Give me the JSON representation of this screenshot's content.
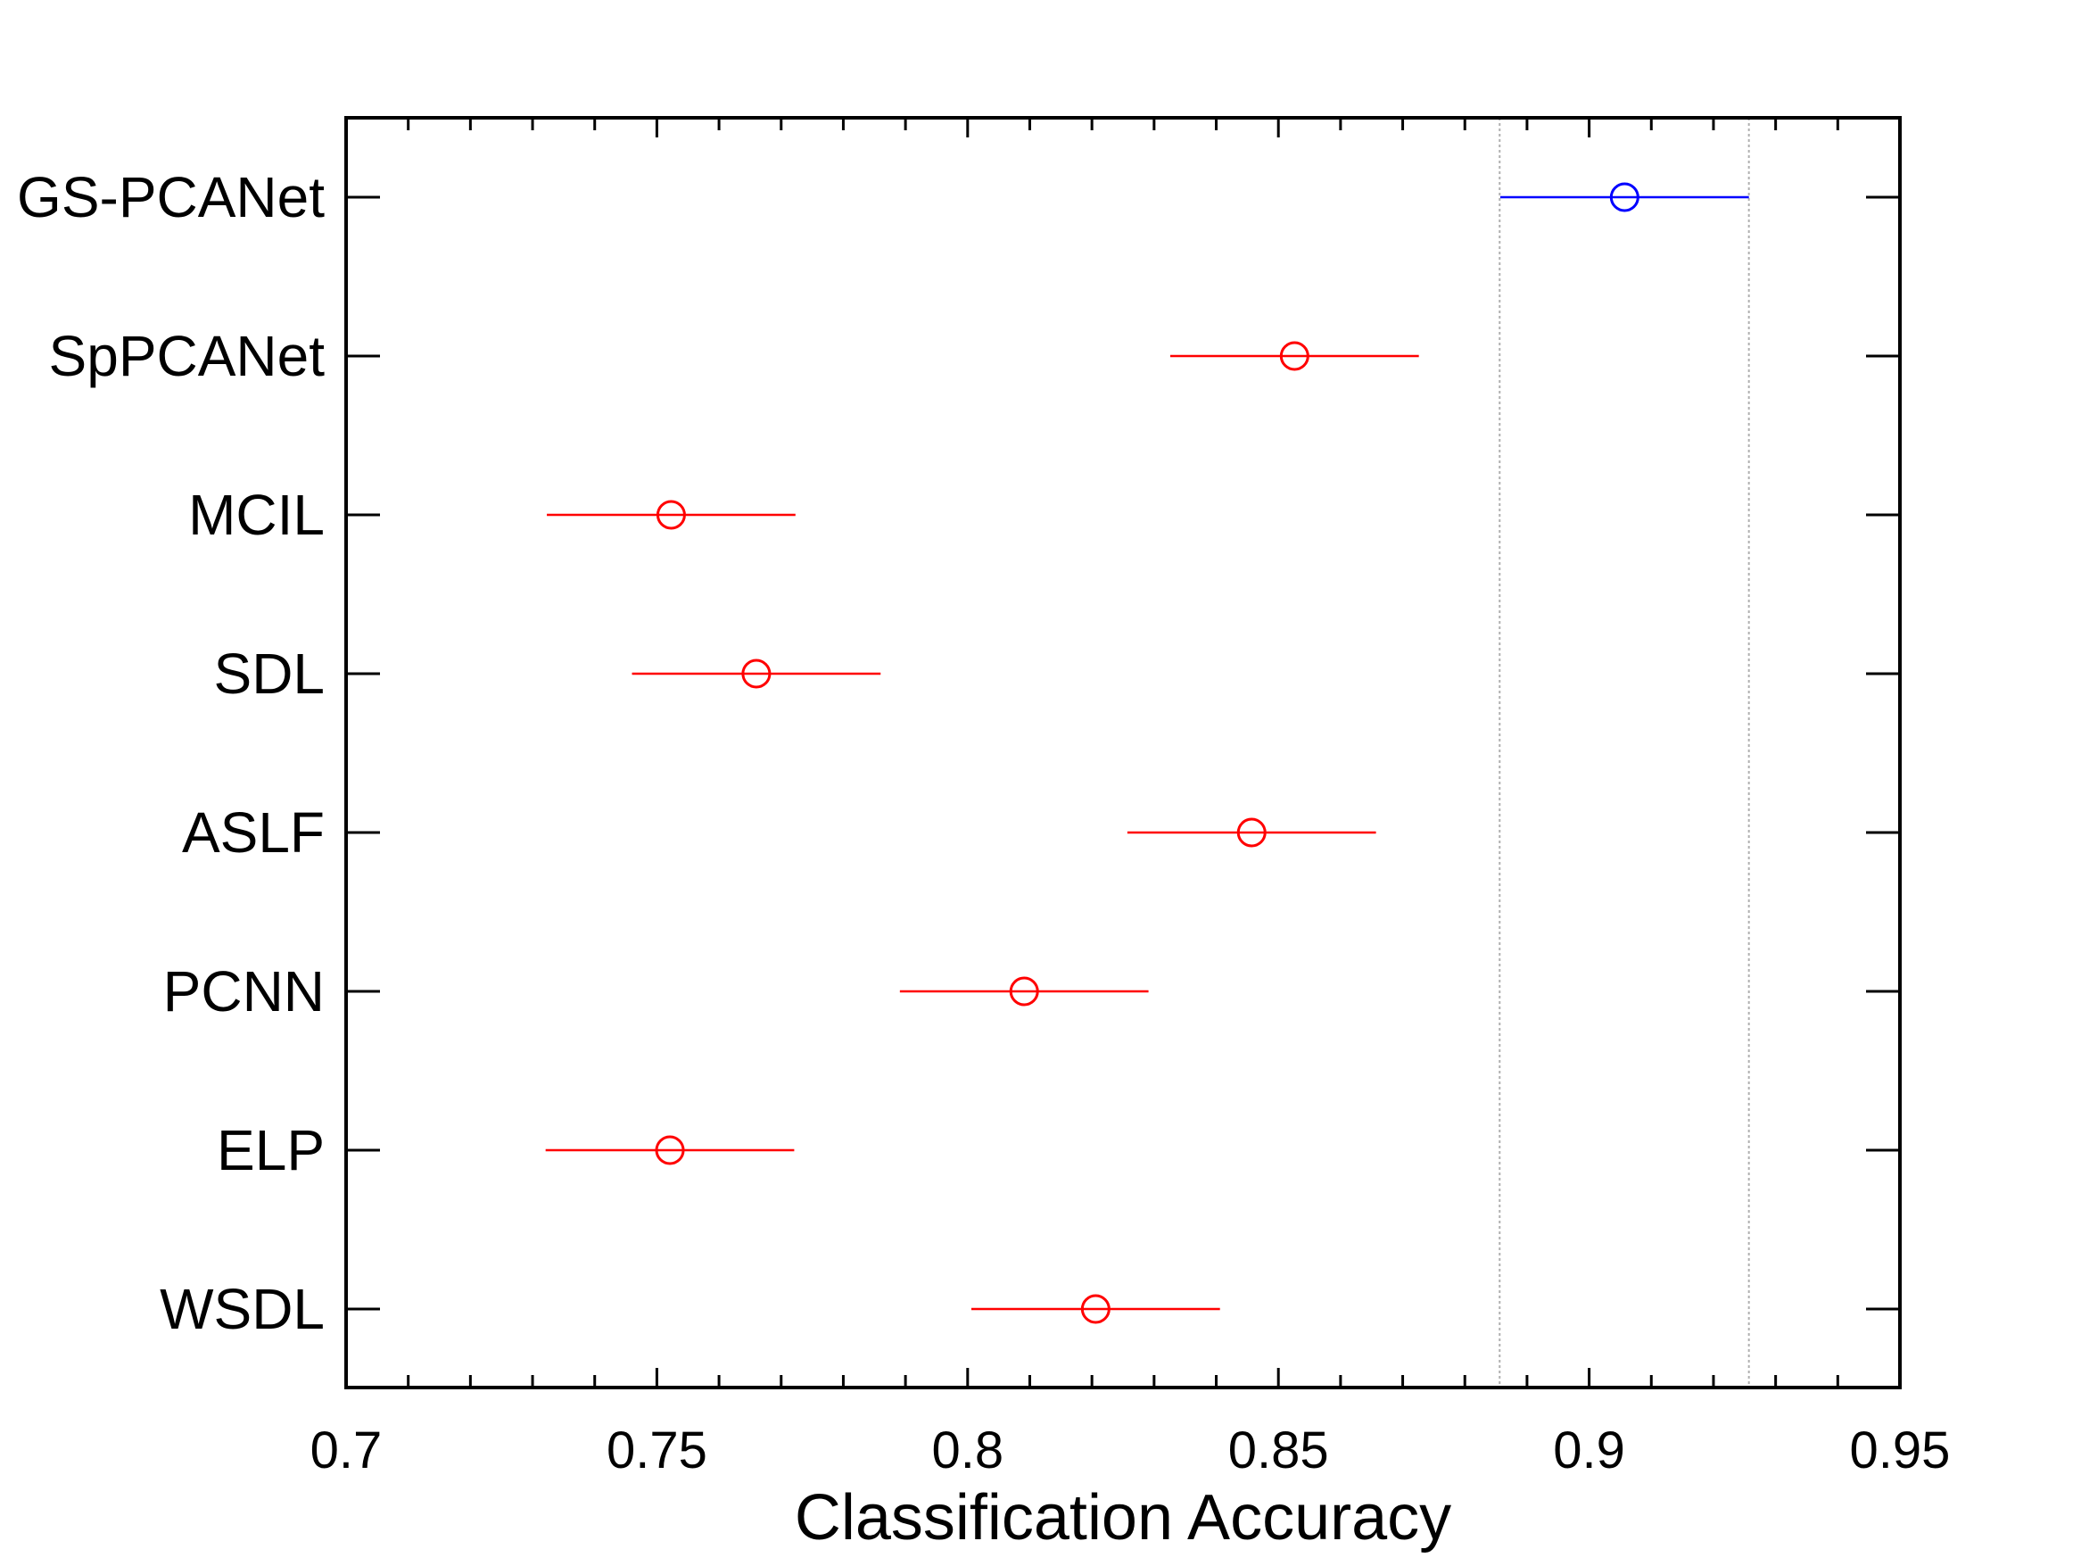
{
  "chart_data": {
    "type": "scatter",
    "title": "",
    "xlabel": "Classification Accuracy",
    "ylabel": "",
    "xlim": [
      0.7,
      0.95
    ],
    "x_ticks": [
      "0.7",
      "0.75",
      "0.8",
      "0.85",
      "0.9",
      "0.95"
    ],
    "grid": false,
    "reference_lines": [
      0.8856,
      0.9257
    ],
    "categories": [
      "GS-PCANet",
      "SpPCANet",
      "MCIL",
      "SDL",
      "ASLF",
      "PCNN",
      "ELP",
      "WSDL"
    ],
    "points": [
      {
        "label": "GS-PCANet",
        "mean": 0.9057,
        "low": 0.8857,
        "high": 0.9257,
        "color": "#0000ff"
      },
      {
        "label": "SpPCANet",
        "mean": 0.8526,
        "low": 0.8326,
        "high": 0.8726,
        "color": "#ff0000"
      },
      {
        "label": "MCIL",
        "mean": 0.7523,
        "low": 0.7323,
        "high": 0.7723,
        "color": "#ff0000"
      },
      {
        "label": "SDL",
        "mean": 0.766,
        "low": 0.746,
        "high": 0.786,
        "color": "#ff0000"
      },
      {
        "label": "ASLF",
        "mean": 0.8457,
        "low": 0.8257,
        "high": 0.8657,
        "color": "#ff0000"
      },
      {
        "label": "PCNN",
        "mean": 0.8091,
        "low": 0.7891,
        "high": 0.8291,
        "color": "#ff0000"
      },
      {
        "label": "ELP",
        "mean": 0.7521,
        "low": 0.7321,
        "high": 0.7721,
        "color": "#ff0000"
      },
      {
        "label": "WSDL",
        "mean": 0.8206,
        "low": 0.8006,
        "high": 0.8406,
        "color": "#ff0000"
      }
    ]
  }
}
